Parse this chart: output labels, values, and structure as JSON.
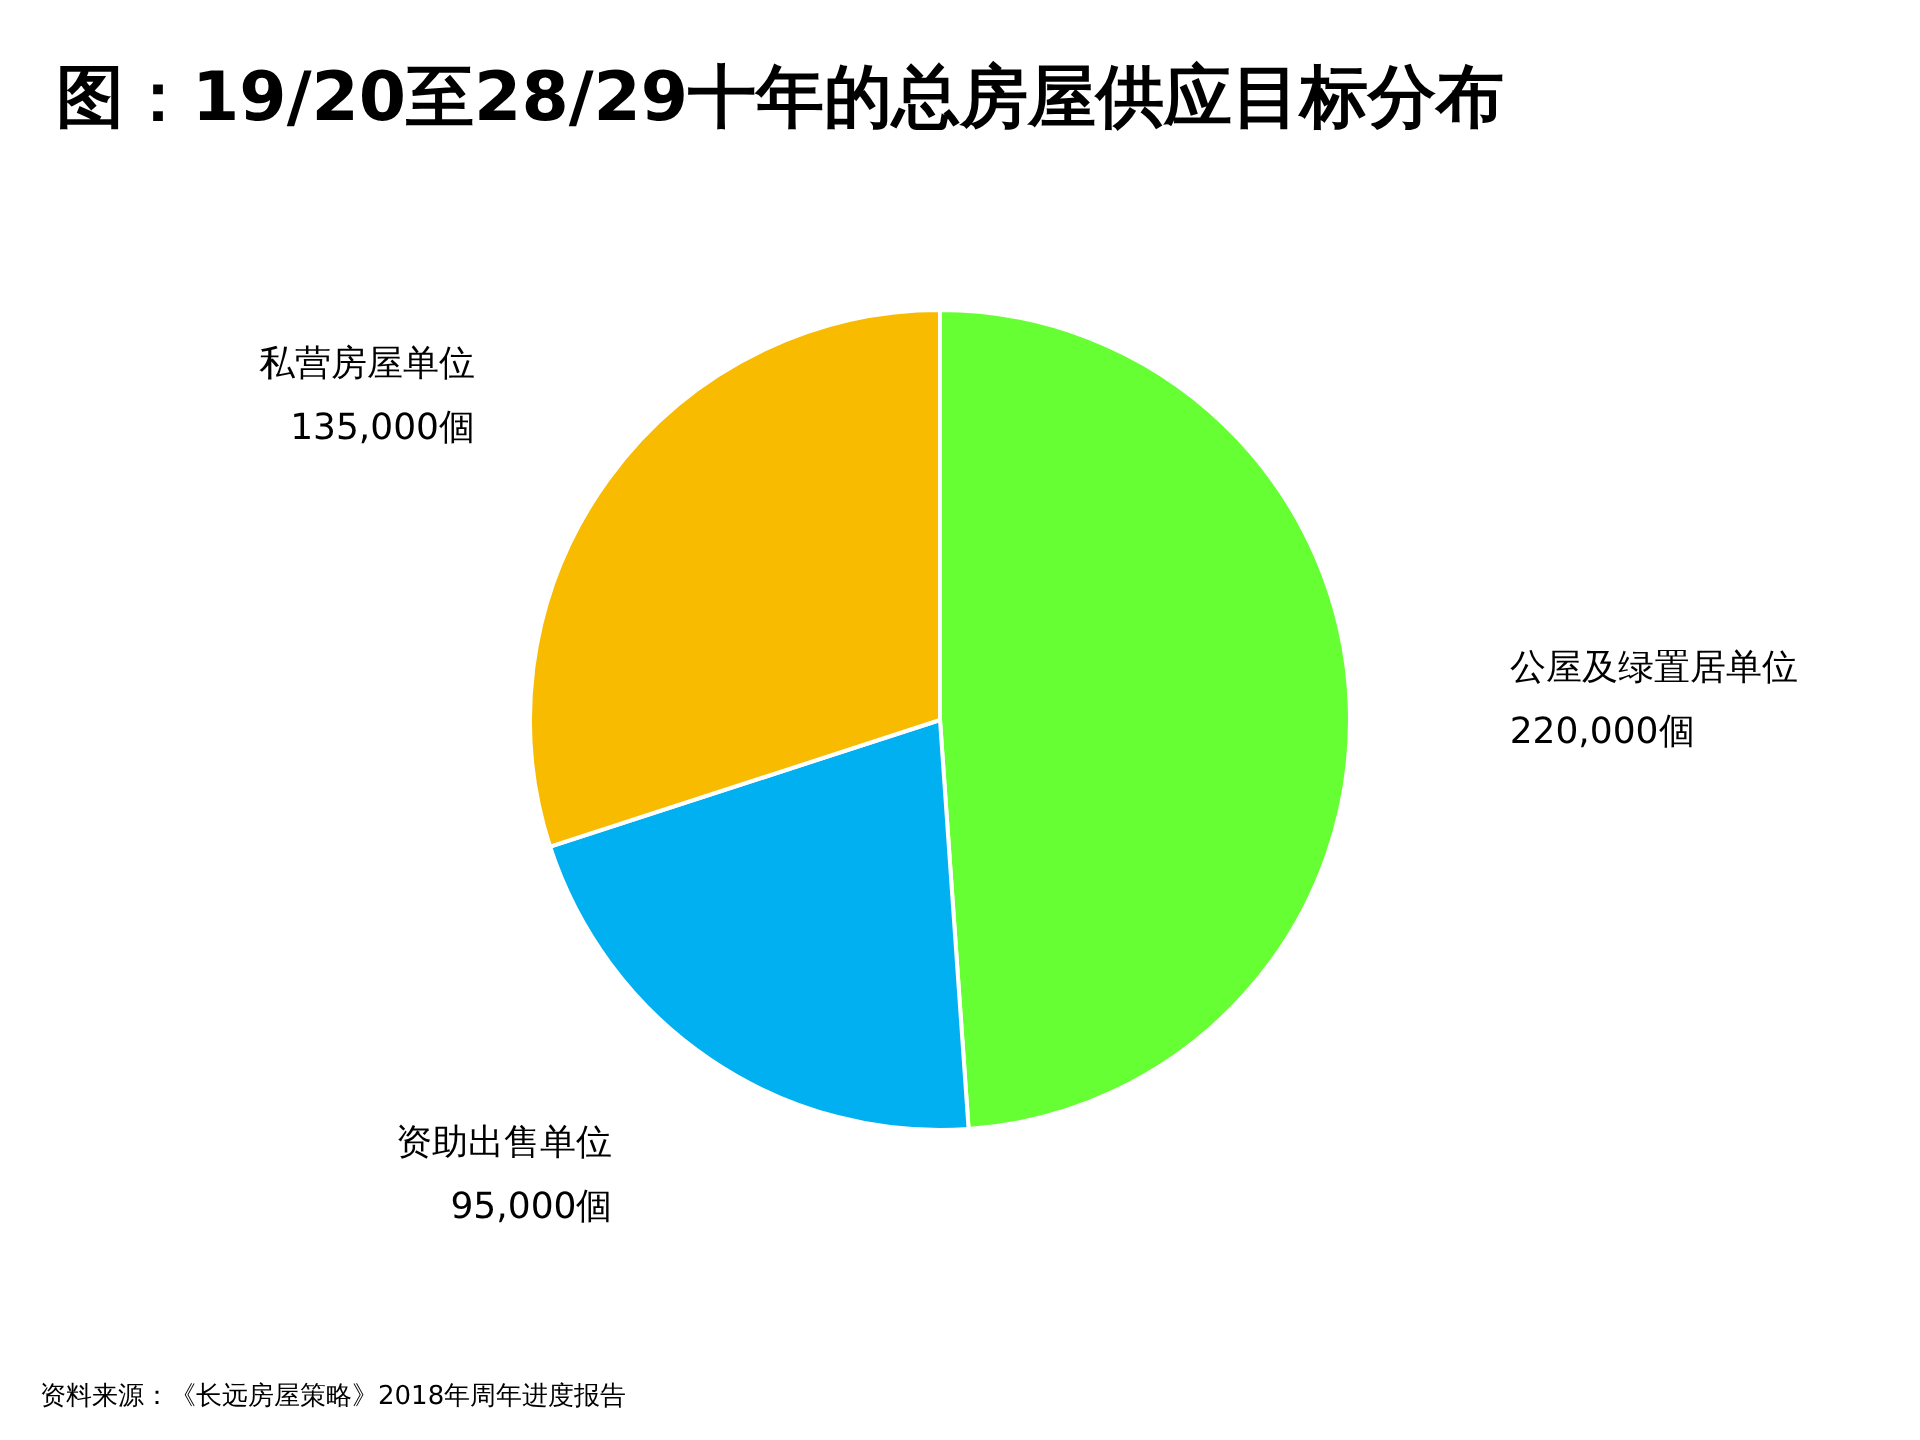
{
  "chart_data": {
    "type": "pie",
    "title": "图：19/20至28/29十年的总房屋供应目标分布",
    "categories": [
      "公屋及绿置居单位",
      "资助出售单位",
      "私营房屋单位"
    ],
    "values": [
      220000,
      95000,
      135000
    ],
    "value_labels": [
      "220,000個",
      "95,000個",
      "135,000個"
    ],
    "colors": [
      "#66ff33",
      "#00b0f0",
      "#f8bb00"
    ],
    "annotations": [
      "资料来源：《长远房屋策略》2018年周年进度报告"
    ]
  }
}
